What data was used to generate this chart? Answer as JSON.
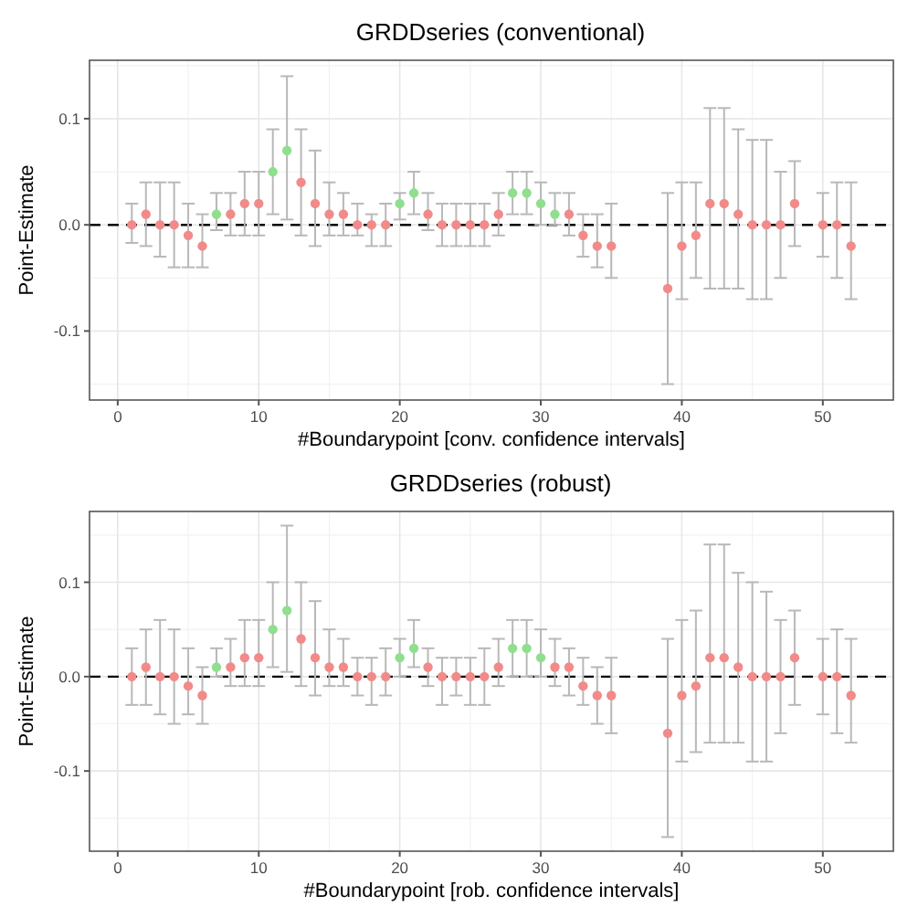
{
  "chart_data": [
    {
      "type": "scatter",
      "title": "GRDDseries (conventional)",
      "xlabel": "#Boundarypoint [conv. confidence intervals]",
      "ylabel": "Point-Estimate",
      "xlim": [
        -2,
        55
      ],
      "ylim": [
        -0.165,
        0.155
      ],
      "xticks": [
        0,
        10,
        20,
        30,
        40,
        50
      ],
      "yticks": [
        {
          "value": -0.1,
          "label": "-0.1"
        },
        {
          "value": 0,
          "label": "0.0"
        },
        {
          "value": 0.1,
          "label": "0.1"
        }
      ],
      "grid": true,
      "marker": "circle",
      "ref_lines": [
        {
          "axis": "y",
          "value": 0,
          "color": "#000000",
          "line_style": "dashed"
        }
      ],
      "series": [
        {
          "color": "#f28a8a",
          "x": [
            1,
            2,
            3,
            4,
            5,
            6,
            8,
            9,
            10,
            13,
            14,
            15,
            16,
            17,
            18,
            19,
            22,
            23,
            24,
            25,
            26,
            27,
            32,
            33,
            34,
            35,
            39,
            40,
            41,
            42,
            43,
            44,
            45,
            46,
            47,
            48,
            50,
            51,
            52
          ],
          "values": [
            0,
            0.01,
            0,
            0,
            -0.01,
            -0.02,
            0.01,
            0.02,
            0.02,
            0.04,
            0.02,
            0.01,
            0.01,
            0,
            0,
            0,
            0.01,
            0,
            0,
            0,
            0,
            0.01,
            0.01,
            -0.01,
            -0.02,
            -0.02,
            -0.06,
            -0.02,
            -0.01,
            0.02,
            0.02,
            0.01,
            0,
            0,
            0,
            0.02,
            0,
            0,
            -0.02
          ],
          "errors": [
            [
              -0.017,
              0.02
            ],
            [
              -0.02,
              0.04
            ],
            [
              -0.03,
              0.04
            ],
            [
              -0.04,
              0.04
            ],
            [
              -0.04,
              0.02
            ],
            [
              -0.04,
              0.01
            ],
            [
              -0.01,
              0.03
            ],
            [
              -0.01,
              0.05
            ],
            [
              -0.01,
              0.05
            ],
            [
              -0.01,
              0.09
            ],
            [
              -0.02,
              0.07
            ],
            [
              -0.01,
              0.04
            ],
            [
              -0.01,
              0.03
            ],
            [
              -0.01,
              0.02
            ],
            [
              -0.02,
              0.01
            ],
            [
              -0.02,
              0.02
            ],
            [
              -0.005,
              0.03
            ],
            [
              -0.02,
              0.02
            ],
            [
              -0.02,
              0.02
            ],
            [
              -0.02,
              0.02
            ],
            [
              -0.02,
              0.02
            ],
            [
              -0.01,
              0.03
            ],
            [
              -0.01,
              0.03
            ],
            [
              -0.03,
              0.01
            ],
            [
              -0.04,
              0.01
            ],
            [
              -0.05,
              0.02
            ],
            [
              -0.15,
              0.03
            ],
            [
              -0.07,
              0.04
            ],
            [
              -0.05,
              0.04
            ],
            [
              -0.06,
              0.11
            ],
            [
              -0.06,
              0.11
            ],
            [
              -0.06,
              0.09
            ],
            [
              -0.07,
              0.08
            ],
            [
              -0.07,
              0.08
            ],
            [
              -0.05,
              0.05
            ],
            [
              -0.02,
              0.06
            ],
            [
              -0.03,
              0.03
            ],
            [
              -0.05,
              0.04
            ],
            [
              -0.07,
              0.04
            ]
          ]
        },
        {
          "color": "#8fdf8f",
          "x": [
            7,
            11,
            12,
            20,
            21,
            28,
            29,
            30,
            31
          ],
          "values": [
            0.01,
            0.05,
            0.07,
            0.02,
            0.03,
            0.03,
            0.03,
            0.02,
            0.01
          ],
          "errors": [
            [
              -0.005,
              0.03
            ],
            [
              0.01,
              0.09
            ],
            [
              0.005,
              0.14
            ],
            [
              0.005,
              0.03
            ],
            [
              0.01,
              0.05
            ],
            [
              0.01,
              0.05
            ],
            [
              0.01,
              0.05
            ],
            [
              0,
              0.04
            ],
            [
              0,
              0.03
            ]
          ]
        }
      ]
    },
    {
      "type": "scatter",
      "title": "GRDDseries (robust)",
      "xlabel": "#Boundarypoint [rob. confidence intervals]",
      "ylabel": "Point-Estimate",
      "xlim": [
        -2,
        55
      ],
      "ylim": [
        -0.185,
        0.175
      ],
      "xticks": [
        0,
        10,
        20,
        30,
        40,
        50
      ],
      "yticks": [
        {
          "value": -0.1,
          "label": "-0.1"
        },
        {
          "value": 0,
          "label": "0.0"
        },
        {
          "value": 0.1,
          "label": "0.1"
        }
      ],
      "grid": true,
      "marker": "circle",
      "ref_lines": [
        {
          "axis": "y",
          "value": 0,
          "color": "#000000",
          "line_style": "dashed"
        }
      ],
      "series": [
        {
          "color": "#f28a8a",
          "x": [
            1,
            2,
            3,
            4,
            5,
            6,
            8,
            9,
            10,
            13,
            14,
            15,
            16,
            17,
            18,
            19,
            22,
            23,
            24,
            25,
            26,
            27,
            31,
            32,
            33,
            34,
            35,
            39,
            40,
            41,
            42,
            43,
            44,
            45,
            46,
            47,
            48,
            50,
            51,
            52
          ],
          "values": [
            0,
            0.01,
            0,
            0,
            -0.01,
            -0.02,
            0.01,
            0.02,
            0.02,
            0.04,
            0.02,
            0.01,
            0.01,
            0,
            0,
            0,
            0.01,
            0,
            0,
            0,
            0,
            0.01,
            0.01,
            0.01,
            -0.01,
            -0.02,
            -0.02,
            -0.06,
            -0.02,
            -0.01,
            0.02,
            0.02,
            0.01,
            0,
            0,
            0,
            0.02,
            0,
            0,
            -0.02
          ],
          "errors": [
            [
              -0.03,
              0.03
            ],
            [
              -0.03,
              0.05
            ],
            [
              -0.04,
              0.06
            ],
            [
              -0.05,
              0.05
            ],
            [
              -0.04,
              0.03
            ],
            [
              -0.05,
              0.01
            ],
            [
              -0.01,
              0.04
            ],
            [
              -0.01,
              0.06
            ],
            [
              -0.01,
              0.06
            ],
            [
              -0.01,
              0.1
            ],
            [
              -0.02,
              0.08
            ],
            [
              -0.01,
              0.05
            ],
            [
              -0.01,
              0.04
            ],
            [
              -0.02,
              0.02
            ],
            [
              -0.03,
              0.02
            ],
            [
              -0.02,
              0.03
            ],
            [
              -0.01,
              0.03
            ],
            [
              -0.03,
              0.02
            ],
            [
              -0.02,
              0.02
            ],
            [
              -0.03,
              0.02
            ],
            [
              -0.03,
              0.03
            ],
            [
              -0.01,
              0.04
            ],
            [
              -0.01,
              0.04
            ],
            [
              -0.02,
              0.03
            ],
            [
              -0.03,
              0.02
            ],
            [
              -0.05,
              0.01
            ],
            [
              -0.06,
              0.02
            ],
            [
              -0.17,
              0.04
            ],
            [
              -0.09,
              0.06
            ],
            [
              -0.08,
              0.07
            ],
            [
              -0.07,
              0.14
            ],
            [
              -0.07,
              0.14
            ],
            [
              -0.07,
              0.11
            ],
            [
              -0.09,
              0.1
            ],
            [
              -0.09,
              0.09
            ],
            [
              -0.06,
              0.06
            ],
            [
              -0.03,
              0.07
            ],
            [
              -0.04,
              0.04
            ],
            [
              -0.06,
              0.05
            ],
            [
              -0.07,
              0.04
            ]
          ]
        },
        {
          "color": "#8fdf8f",
          "x": [
            7,
            11,
            12,
            20,
            21,
            28,
            29,
            30
          ],
          "values": [
            0.01,
            0.05,
            0.07,
            0.02,
            0.03,
            0.03,
            0.03,
            0.02
          ],
          "errors": [
            [
              0,
              0.03
            ],
            [
              0.01,
              0.1
            ],
            [
              0.005,
              0.16
            ],
            [
              0,
              0.04
            ],
            [
              0.01,
              0.06
            ],
            [
              0,
              0.06
            ],
            [
              0,
              0.06
            ],
            [
              0,
              0.05
            ]
          ]
        }
      ]
    }
  ]
}
